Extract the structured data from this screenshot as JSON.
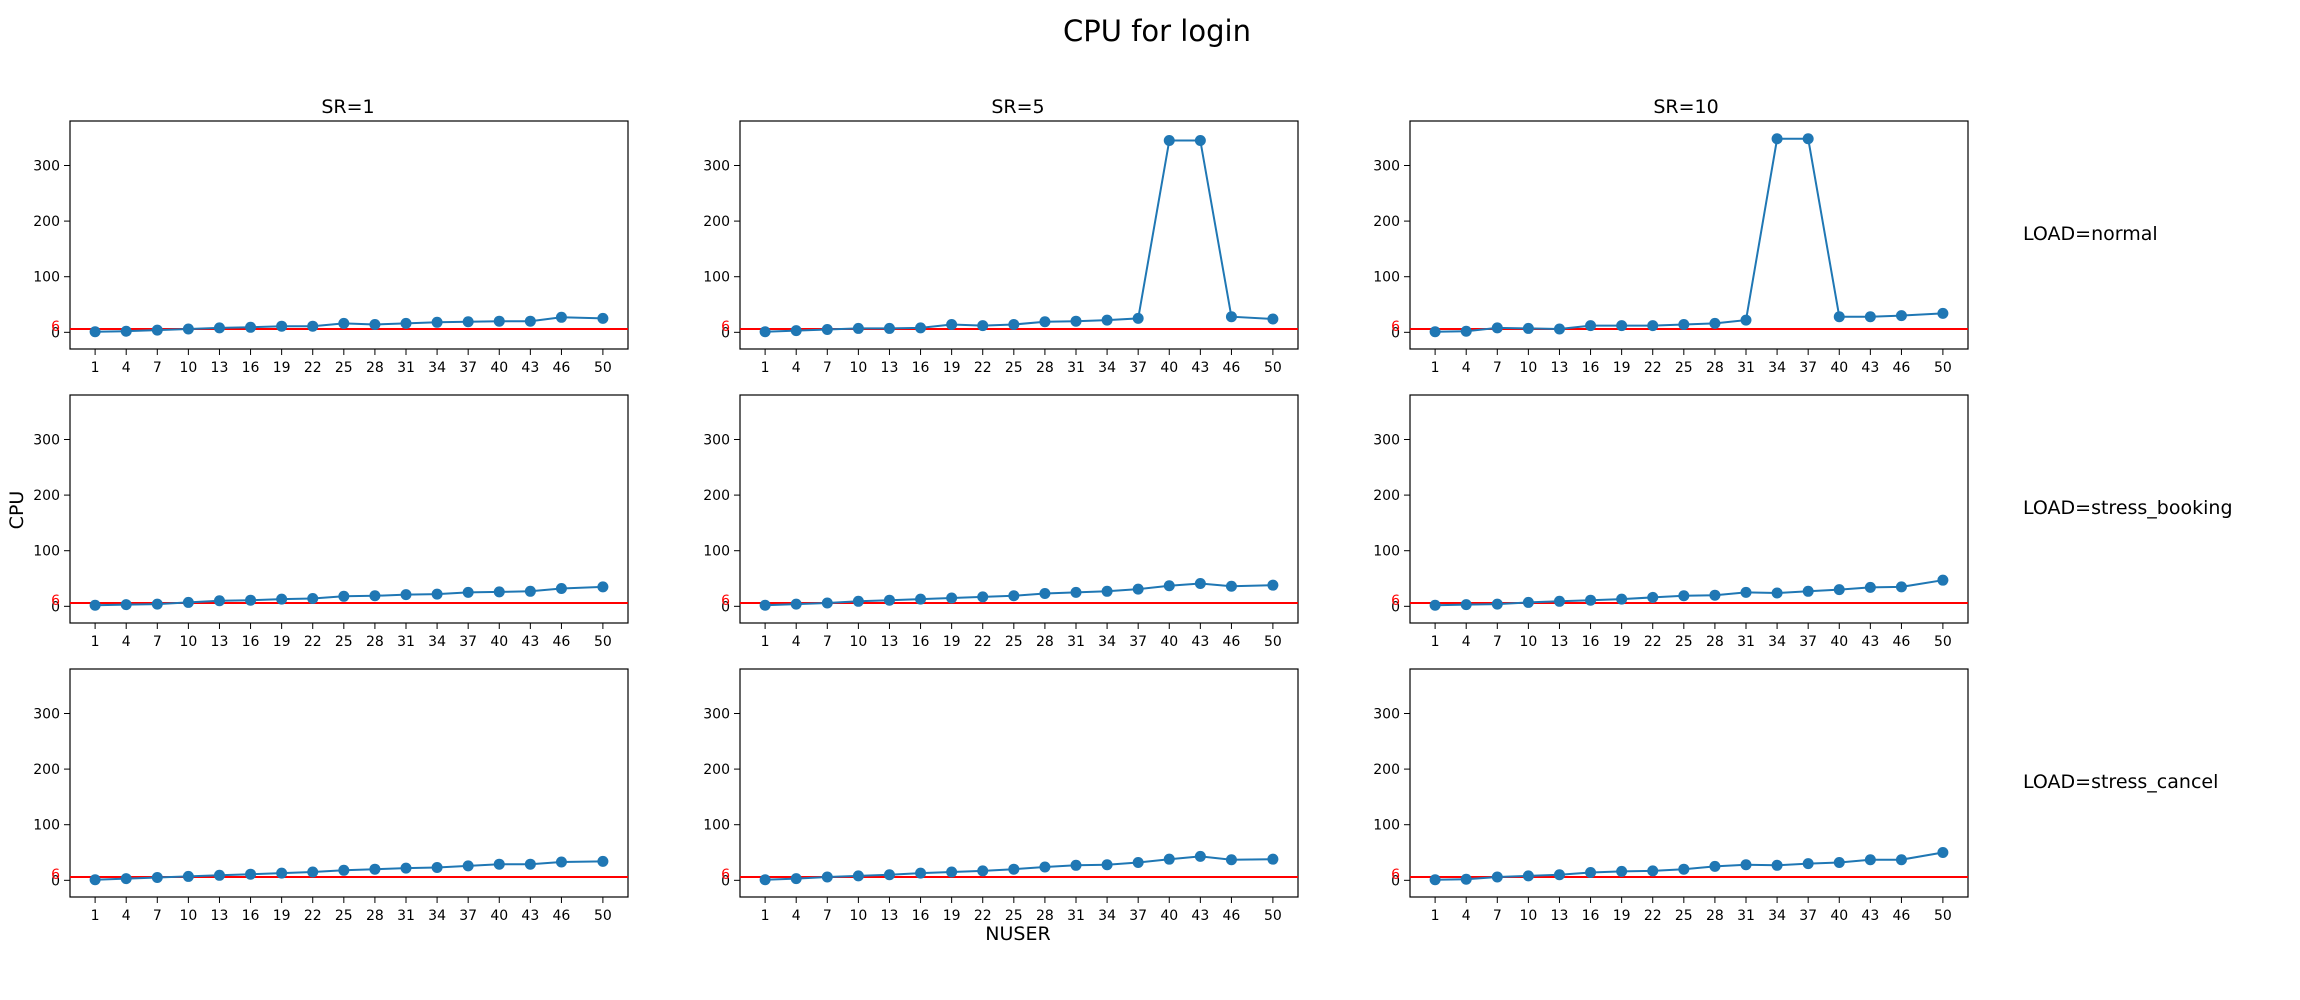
{
  "figure": {
    "title": "CPU for login",
    "ylabel": "CPU",
    "xlabel": "NUSER",
    "columns": [
      "SR=1",
      "SR=5",
      "SR=10"
    ],
    "rows": [
      "LOAD=normal",
      "LOAD=stress_booking",
      "LOAD=stress_cancel"
    ]
  },
  "chart_data": {
    "type": "line",
    "layout": "3x3 small multiples (rows = LOAD, columns = SR)",
    "x": [
      1,
      4,
      7,
      10,
      13,
      16,
      19,
      22,
      25,
      28,
      31,
      34,
      37,
      40,
      43,
      46,
      50
    ],
    "x_ticks": [
      "1",
      "4",
      "7",
      "10",
      "13",
      "16",
      "19",
      "22",
      "25",
      "28",
      "31",
      "34",
      "37",
      "40",
      "43",
      "46",
      "50"
    ],
    "y_ticks": [
      "0",
      "100",
      "200",
      "300"
    ],
    "ylim": [
      -30,
      380
    ],
    "reference_line": {
      "value": 6,
      "label": "6",
      "color": "#ff0000"
    },
    "series_color": "#1f77b4",
    "panels": [
      {
        "row": "LOAD=normal",
        "col": "SR=1",
        "values": [
          1,
          2,
          4,
          6,
          8,
          9,
          11,
          11,
          16,
          14,
          16,
          18,
          19,
          20,
          20,
          27,
          25
        ]
      },
      {
        "row": "LOAD=normal",
        "col": "SR=5",
        "values": [
          1,
          3,
          5,
          7,
          7,
          8,
          14,
          12,
          14,
          19,
          20,
          22,
          25,
          345,
          345,
          28,
          24
        ]
      },
      {
        "row": "LOAD=normal",
        "col": "SR=10",
        "values": [
          1,
          2,
          8,
          7,
          6,
          12,
          12,
          12,
          14,
          16,
          22,
          348,
          348,
          28,
          28,
          30,
          34
        ]
      },
      {
        "row": "LOAD=stress_booking",
        "col": "SR=1",
        "values": [
          2,
          3,
          4,
          7,
          10,
          11,
          13,
          14,
          18,
          19,
          21,
          22,
          25,
          26,
          27,
          32,
          35
        ]
      },
      {
        "row": "LOAD=stress_booking",
        "col": "SR=5",
        "values": [
          2,
          4,
          6,
          9,
          11,
          13,
          15,
          17,
          19,
          23,
          25,
          27,
          31,
          37,
          41,
          36,
          38
        ]
      },
      {
        "row": "LOAD=stress_booking",
        "col": "SR=10",
        "values": [
          2,
          3,
          4,
          7,
          9,
          11,
          13,
          16,
          19,
          20,
          25,
          24,
          27,
          30,
          34,
          35,
          47
        ]
      },
      {
        "row": "LOAD=stress_cancel",
        "col": "SR=1",
        "values": [
          1,
          3,
          5,
          7,
          9,
          11,
          13,
          15,
          18,
          20,
          22,
          23,
          26,
          29,
          29,
          33,
          34
        ]
      },
      {
        "row": "LOAD=stress_cancel",
        "col": "SR=5",
        "values": [
          1,
          3,
          6,
          8,
          10,
          13,
          15,
          17,
          20,
          24,
          27,
          28,
          32,
          38,
          43,
          37,
          38
        ]
      },
      {
        "row": "LOAD=stress_cancel",
        "col": "SR=10",
        "values": [
          1,
          2,
          6,
          8,
          10,
          14,
          16,
          17,
          20,
          25,
          28,
          27,
          30,
          32,
          37,
          37,
          50
        ]
      }
    ]
  }
}
